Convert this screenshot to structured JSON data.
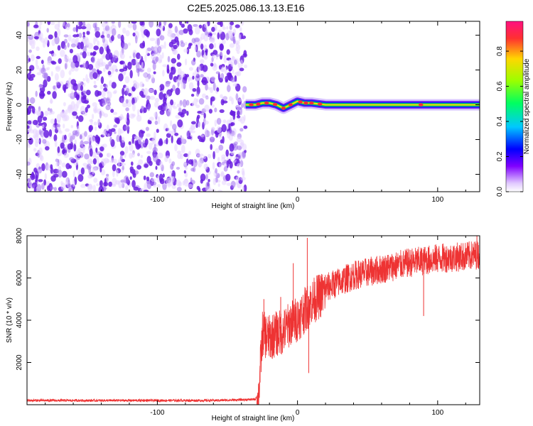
{
  "figure_title": "C2E5.2025.086.13.13.E16",
  "chart_data": [
    {
      "type": "heatmap",
      "title": "C2E5.2025.086.13.13.E16",
      "xlabel": "Height of straight line (km)",
      "ylabel": "Frequency (Hz)",
      "xlim": [
        -193,
        130
      ],
      "ylim": [
        -50,
        48
      ],
      "xticks": [
        -100,
        0,
        100
      ],
      "xtick_labels": [
        "-100",
        "0",
        "100"
      ],
      "yticks": [
        -40,
        -20,
        0,
        20,
        40
      ],
      "ytick_labels": [
        "-40",
        "-20",
        "0",
        "20",
        "40"
      ],
      "noise_region": {
        "x_range": [
          -193,
          -37
        ],
        "y_range": [
          -50,
          48
        ]
      },
      "signal_band": {
        "x_range": [
          -37,
          130
        ],
        "center_freq": [
          {
            "x": -37,
            "y": 0
          },
          {
            "x": -30,
            "y": 0
          },
          {
            "x": -25,
            "y": 1
          },
          {
            "x": -20,
            "y": 1
          },
          {
            "x": -15,
            "y": 0
          },
          {
            "x": -10,
            "y": -2
          },
          {
            "x": -5,
            "y": 0
          },
          {
            "x": 0,
            "y": 2
          },
          {
            "x": 5,
            "y": 1
          },
          {
            "x": 10,
            "y": 1
          },
          {
            "x": 20,
            "y": 0
          },
          {
            "x": 60,
            "y": 0
          },
          {
            "x": 90,
            "y": 0
          },
          {
            "x": 130,
            "y": 0
          }
        ]
      },
      "colorbar": {
        "label": "Normalized spectral amplitude",
        "range": [
          0,
          0.97
        ],
        "ticks": [
          0.0,
          0.2,
          0.4,
          0.6,
          0.8
        ],
        "tick_labels": [
          "0.0",
          "0.2",
          "0.4",
          "0.6",
          "0.8"
        ]
      },
      "colors": {
        "low": "#e6d3ff",
        "noise": "#6a1fe0",
        "band_outer": "#1a1aff",
        "band_mid": "#00cc66",
        "band_inner": "#ffdd00",
        "band_peak": "#ff2a3a"
      }
    },
    {
      "type": "line",
      "xlabel": "Height of straight line (km)",
      "ylabel": "SNR (10 * v/v)",
      "xlim": [
        -193,
        130
      ],
      "ylim": [
        0,
        8000
      ],
      "xticks": [
        -100,
        0,
        100
      ],
      "xtick_labels": [
        "-100",
        "0",
        "100"
      ],
      "yticks": [
        2000,
        4000,
        6000,
        8000
      ],
      "ytick_labels": [
        "2000",
        "4000",
        "6000",
        "8000"
      ],
      "series": [
        {
          "color": "#ee3333",
          "envelope": [
            {
              "x": -193,
              "y": 200
            },
            {
              "x": -150,
              "y": 200
            },
            {
              "x": -100,
              "y": 200
            },
            {
              "x": -60,
              "y": 200
            },
            {
              "x": -30,
              "y": 250
            },
            {
              "x": -28,
              "y": 600
            },
            {
              "x": -25,
              "y": 3800
            },
            {
              "x": -20,
              "y": 3600
            },
            {
              "x": -15,
              "y": 3800
            },
            {
              "x": -10,
              "y": 3900
            },
            {
              "x": -5,
              "y": 4300
            },
            {
              "x": 0,
              "y": 4500
            },
            {
              "x": 5,
              "y": 4900
            },
            {
              "x": 10,
              "y": 5300
            },
            {
              "x": 20,
              "y": 5800
            },
            {
              "x": 30,
              "y": 6100
            },
            {
              "x": 40,
              "y": 6400
            },
            {
              "x": 60,
              "y": 6700
            },
            {
              "x": 80,
              "y": 7000
            },
            {
              "x": 100,
              "y": 7200
            },
            {
              "x": 120,
              "y": 7300
            },
            {
              "x": 130,
              "y": 7400
            }
          ],
          "spikes": [
            {
              "x": -24,
              "y": 5000
            },
            {
              "x": -12,
              "y": 5100
            },
            {
              "x": -3,
              "y": 6700
            },
            {
              "x": 7,
              "y": 7900
            },
            {
              "x": 8,
              "y": 1500
            },
            {
              "x": 90,
              "y": 4200
            },
            {
              "x": 128,
              "y": 8000
            }
          ]
        }
      ]
    }
  ]
}
